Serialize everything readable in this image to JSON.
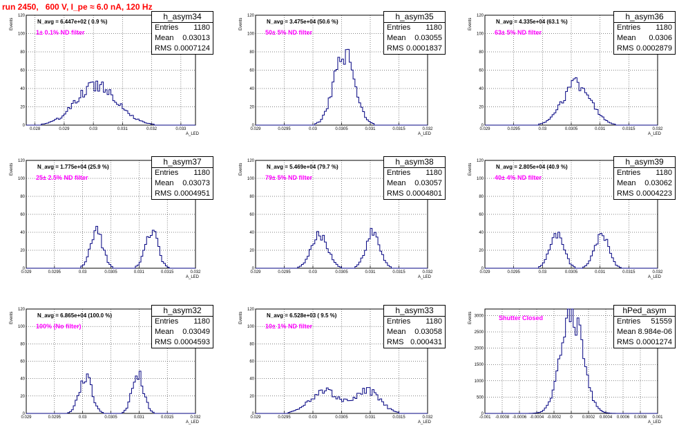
{
  "title": "run 2450,   600 V, I_pe ≈ 6.0 nA, 120 Hz",
  "colors": {
    "title": "#ff0000",
    "filter_text": "#ff00ff",
    "histogram": "#000080",
    "grid": "#000000"
  },
  "axis_titles": {
    "y": "Events",
    "x": "A_LED"
  },
  "chart_data": [
    {
      "type": "bar",
      "name": "h_asym34",
      "entries": "1180",
      "mean": "0.03013",
      "rms": "0.0007124",
      "n_avg": "N_avg = 6.447e+02 ( 0.9 %)",
      "filter": "1± 0.1% ND filter",
      "xlim": [
        0.0277,
        0.0335
      ],
      "ylim": [
        0,
        120
      ],
      "xticks": [
        "0.028",
        "0.029",
        "0.03",
        "0.031",
        "0.032",
        "0.033"
      ],
      "xtick_values": [
        0.028,
        0.029,
        0.03,
        0.031,
        0.032,
        0.033
      ],
      "yticks": [
        "0",
        "20",
        "40",
        "60",
        "80",
        "100",
        "120"
      ],
      "ytick_values": [
        0,
        20,
        40,
        60,
        80,
        100,
        120
      ],
      "peaks": [
        [
          0.03013,
          0.0007,
          44
        ]
      ]
    },
    {
      "type": "bar",
      "name": "h_asym35",
      "entries": "1180",
      "mean": "0.03055",
      "rms": "0.0001837",
      "n_avg": "N_avg = 3.475e+04 (50.6 %)",
      "filter": "50± 5% ND filter",
      "xlim": [
        0.029,
        0.032
      ],
      "ylim": [
        0,
        120
      ],
      "xticks": [
        "0.029",
        "0.0295",
        "0.03",
        "0.0305",
        "0.031",
        "0.0315",
        "0.032"
      ],
      "xtick_values": [
        0.029,
        0.0295,
        0.03,
        0.0305,
        0.031,
        0.0315,
        0.032
      ],
      "yticks": [
        "0",
        "20",
        "40",
        "60",
        "80",
        "100",
        "120"
      ],
      "ytick_values": [
        0,
        20,
        40,
        60,
        80,
        100,
        120
      ],
      "peaks": [
        [
          0.03055,
          0.00018,
          78
        ]
      ]
    },
    {
      "type": "bar",
      "name": "h_asym36",
      "entries": "1180",
      "mean": "0.0306",
      "rms": "0.0002879",
      "n_avg": "N_avg = 4.335e+04 (63.1 %)",
      "filter": "63± 5% ND filter",
      "xlim": [
        0.029,
        0.032
      ],
      "ylim": [
        0,
        120
      ],
      "xticks": [
        "0.029",
        "0.0295",
        "0.03",
        "0.0305",
        "0.031",
        "0.0315",
        "0.032"
      ],
      "xtick_values": [
        0.029,
        0.0295,
        0.03,
        0.0305,
        0.031,
        0.0315,
        0.032
      ],
      "yticks": [
        "0",
        "20",
        "40",
        "60",
        "80",
        "100",
        "120"
      ],
      "ytick_values": [
        0,
        20,
        40,
        60,
        80,
        100,
        120
      ],
      "peaks": [
        [
          0.0306,
          0.00024,
          46
        ]
      ]
    },
    {
      "type": "bar",
      "name": "h_asym37",
      "entries": "1180",
      "mean": "0.03073",
      "rms": "0.0004951",
      "n_avg": "N_avg = 1.775e+04 (25.9 %)",
      "filter": "25± 2.5% ND filter",
      "xlim": [
        0.029,
        0.032
      ],
      "ylim": [
        0,
        120
      ],
      "xticks": [
        "0.029",
        "0.0295",
        "0.03",
        "0.0305",
        "0.031",
        "0.0315",
        "0.032"
      ],
      "xtick_values": [
        0.029,
        0.0295,
        0.03,
        0.0305,
        0.031,
        0.0315,
        0.032
      ],
      "yticks": [
        "0",
        "20",
        "40",
        "60",
        "80",
        "100",
        "120"
      ],
      "ytick_values": [
        0,
        20,
        40,
        60,
        80,
        100,
        120
      ],
      "peaks": [
        [
          0.03025,
          0.00011,
          40
        ],
        [
          0.03122,
          0.00011,
          42
        ]
      ]
    },
    {
      "type": "bar",
      "name": "h_asym38",
      "entries": "1180",
      "mean": "0.03057",
      "rms": "0.0004801",
      "n_avg": "N_avg = 5.469e+04 (79.7 %)",
      "filter": "79± 5% ND filter",
      "xlim": [
        0.029,
        0.032
      ],
      "ylim": [
        0,
        120
      ],
      "xticks": [
        "0.029",
        "0.0295",
        "0.03",
        "0.0305",
        "0.031",
        "0.0315",
        "0.032"
      ],
      "xtick_values": [
        0.029,
        0.0295,
        0.03,
        0.0305,
        0.031,
        0.0315,
        0.032
      ],
      "yticks": [
        "0",
        "20",
        "40",
        "60",
        "80",
        "100",
        "120"
      ],
      "ytick_values": [
        0,
        20,
        40,
        60,
        80,
        100,
        120
      ],
      "peaks": [
        [
          0.03012,
          0.00014,
          38
        ],
        [
          0.03105,
          0.00012,
          40
        ]
      ]
    },
    {
      "type": "bar",
      "name": "h_asym39",
      "entries": "1180",
      "mean": "0.03062",
      "rms": "0.0004223",
      "n_avg": "N_avg = 2.805e+04 (40.9 %)",
      "filter": "40± 4% ND filter",
      "xlim": [
        0.029,
        0.032
      ],
      "ylim": [
        0,
        120
      ],
      "xticks": [
        "0.029",
        "0.0295",
        "0.03",
        "0.0305",
        "0.031",
        "0.0315",
        "0.032"
      ],
      "xtick_values": [
        0.029,
        0.0295,
        0.03,
        0.0305,
        0.031,
        0.0315,
        0.032
      ],
      "yticks": [
        "0",
        "20",
        "40",
        "60",
        "80",
        "100",
        "120"
      ],
      "ytick_values": [
        0,
        20,
        40,
        60,
        80,
        100,
        120
      ],
      "peaks": [
        [
          0.03025,
          0.00012,
          38
        ],
        [
          0.03103,
          0.00012,
          38
        ]
      ]
    },
    {
      "type": "bar",
      "name": "h_asym32",
      "entries": "1180",
      "mean": "0.03049",
      "rms": "0.0004593",
      "n_avg": "N_avg = 6.865e+04 (100.0 %)",
      "filter": "100% (No filter)",
      "xlim": [
        0.029,
        0.032
      ],
      "ylim": [
        0,
        120
      ],
      "xticks": [
        "0.029",
        "0.0295",
        "0.03",
        "0.0305",
        "0.031",
        "0.0315",
        "0.032"
      ],
      "xtick_values": [
        0.029,
        0.0295,
        0.03,
        0.0305,
        0.031,
        0.0315,
        0.032
      ],
      "yticks": [
        "0",
        "20",
        "40",
        "60",
        "80",
        "100",
        "120"
      ],
      "ytick_values": [
        0,
        20,
        40,
        60,
        80,
        100,
        120
      ],
      "peaks": [
        [
          0.03005,
          0.00011,
          44
        ],
        [
          0.03098,
          0.0001,
          46
        ]
      ]
    },
    {
      "type": "bar",
      "name": "h_asym33",
      "entries": "1180",
      "mean": "0.03058",
      "rms": "0.000431",
      "n_avg": "N_avg = 6.528e+03 ( 9.5 %)",
      "filter": "10± 1% ND filter",
      "xlim": [
        0.029,
        0.032
      ],
      "ylim": [
        0,
        120
      ],
      "xticks": [
        "0.029",
        "0.0295",
        "0.03",
        "0.0305",
        "0.031",
        "0.0315",
        "0.032"
      ],
      "xtick_values": [
        0.029,
        0.0295,
        0.03,
        0.0305,
        0.031,
        0.0315,
        0.032
      ],
      "yticks": [
        "0",
        "20",
        "40",
        "60",
        "80",
        "100",
        "120"
      ],
      "ytick_values": [
        0,
        20,
        40,
        60,
        80,
        100,
        120
      ],
      "peaks": [
        [
          0.0302,
          0.00025,
          26
        ],
        [
          0.03095,
          0.00022,
          26
        ]
      ]
    },
    {
      "type": "bar",
      "name": "hPed_asym",
      "entries": "51559",
      "mean": "8.984e-06",
      "rms": "0.0001274",
      "n_avg": "",
      "filter": "Shutter Closed",
      "xlim": [
        -0.001,
        0.001
      ],
      "ylim": [
        0,
        3200
      ],
      "xticks": [
        "-0.001",
        "-0.0008",
        "-0.0006",
        "-0.0004",
        "-0.0002",
        "0",
        "0.0002",
        "0.0004",
        "0.0006",
        "0.0008",
        "0.001"
      ],
      "xtick_values": [
        -0.001,
        -0.0008,
        -0.0006,
        -0.0004,
        -0.0002,
        0,
        0.0002,
        0.0004,
        0.0006,
        0.0008,
        0.001
      ],
      "yticks": [
        "0",
        "500",
        "1000",
        "1500",
        "2000",
        "2500",
        "3000"
      ],
      "ytick_values": [
        0,
        500,
        1000,
        1500,
        2000,
        2500,
        3000
      ],
      "peaks": [
        [
          9e-06,
          0.000127,
          3000
        ]
      ]
    }
  ]
}
